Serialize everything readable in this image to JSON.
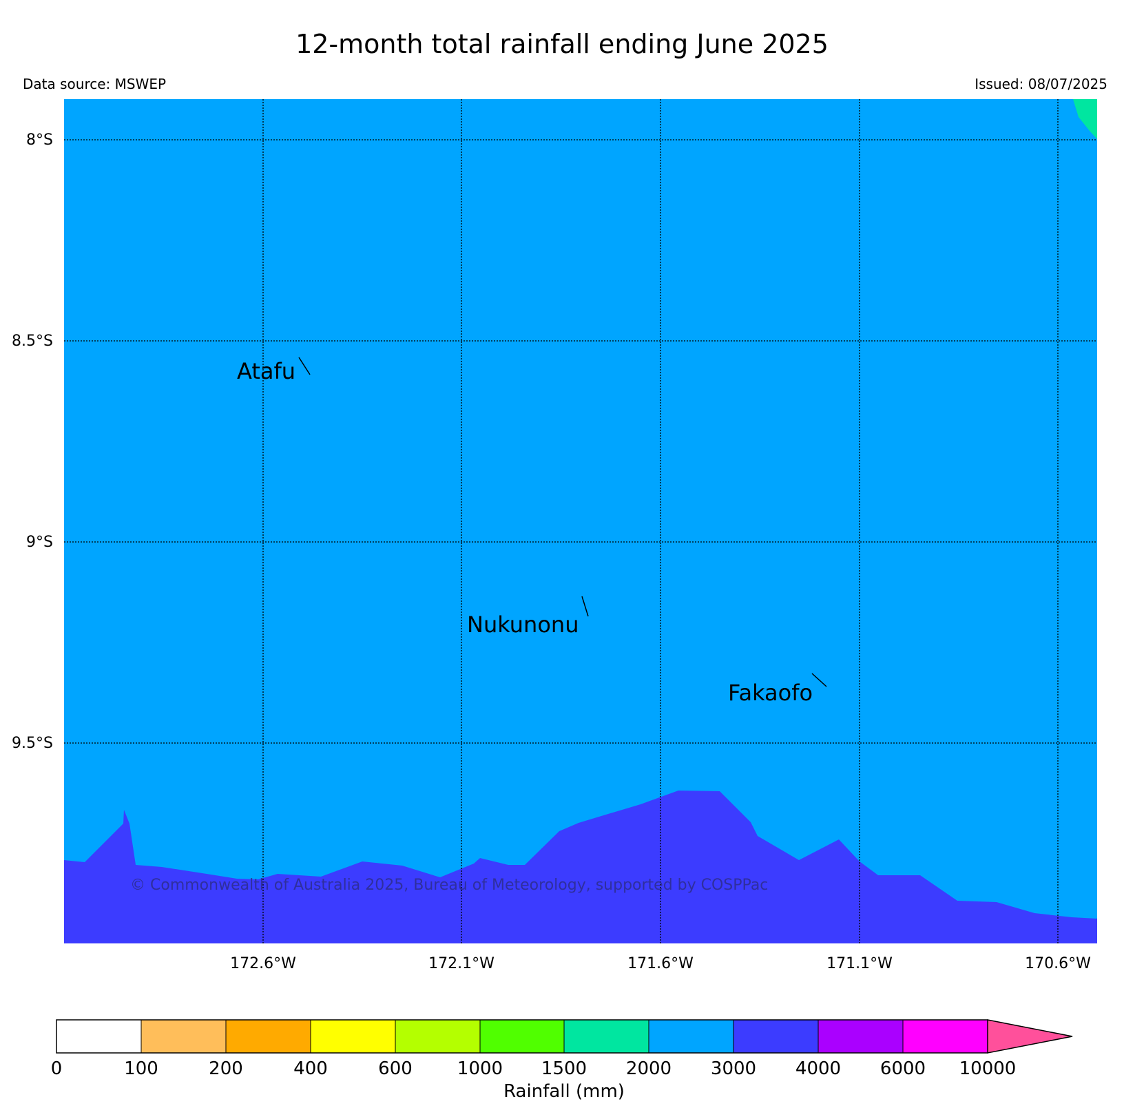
{
  "header": {
    "title": "12-month total rainfall ending June 2025",
    "data_source": "Data source: MSWEP",
    "issued": "Issued: 08/07/2025"
  },
  "map": {
    "lat_labels": [
      "8°S",
      "8.5°S",
      "9°S",
      "9.5°S"
    ],
    "lon_labels": [
      "172.6°W",
      "172.1°W",
      "171.6°W",
      "171.1°W",
      "170.6°W"
    ],
    "places": [
      {
        "name": "Atafu"
      },
      {
        "name": "Nukunonu"
      },
      {
        "name": "Fakaofo"
      }
    ],
    "copyright": "© Commonwealth of Australia 2025, Bureau of Meteorology, supported by COSPPac",
    "colors": {
      "band_2000_3000": "#00a5ff",
      "band_3000_4000": "#3c3cff",
      "band_1500_2000": "#00e6a0"
    }
  },
  "legend": {
    "label": "Rainfall (mm)",
    "ticks": [
      "0",
      "100",
      "200",
      "400",
      "600",
      "1000",
      "1500",
      "2000",
      "3000",
      "4000",
      "6000",
      "10000"
    ],
    "colors": [
      "#ffffff",
      "#ffbe5a",
      "#ffaa00",
      "#ffff00",
      "#b4ff00",
      "#50ff00",
      "#00e6a0",
      "#00a5ff",
      "#3c3cff",
      "#aa00ff",
      "#ff00ff"
    ],
    "extend_color": "#ff509b"
  }
}
